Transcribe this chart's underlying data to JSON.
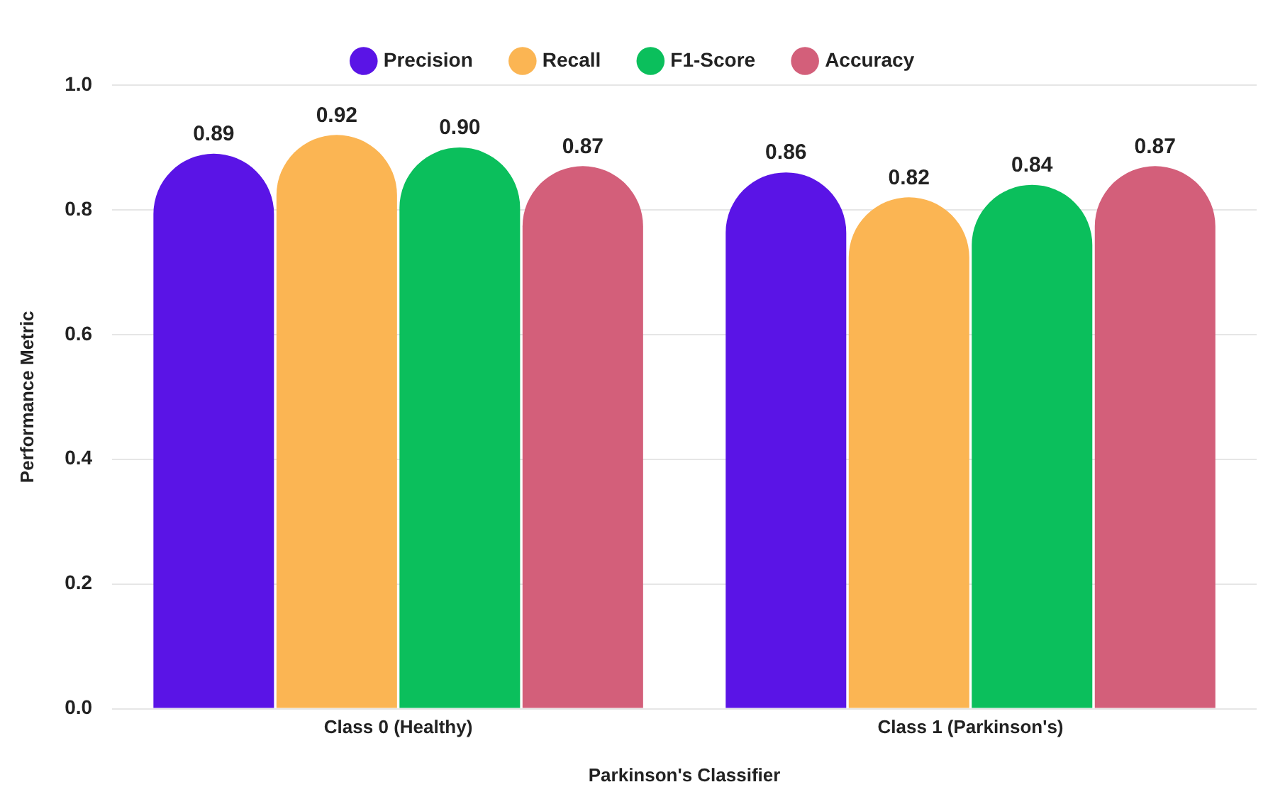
{
  "chart_data": {
    "type": "bar",
    "xlabel": "Parkinson's Classifier",
    "ylabel": "Performance Metric",
    "categories": [
      "Class 0 (Healthy)",
      "Class 1 (Parkinson's)"
    ],
    "series": [
      {
        "name": "Precision",
        "color": "#5a14e6",
        "values": [
          0.89,
          0.86
        ],
        "value_labels": [
          "0.89",
          "0.86"
        ]
      },
      {
        "name": "Recall",
        "color": "#fbb553",
        "values": [
          0.92,
          0.82
        ],
        "value_labels": [
          "0.92",
          "0.82"
        ]
      },
      {
        "name": "F1-Score",
        "color": "#0bbf5c",
        "values": [
          0.9,
          0.84
        ],
        "value_labels": [
          "0.90",
          "0.84"
        ]
      },
      {
        "name": "Accuracy",
        "color": "#d35f7a",
        "values": [
          0.87,
          0.87
        ],
        "value_labels": [
          "0.87",
          "0.87"
        ]
      }
    ],
    "ylim": [
      0,
      1.0
    ],
    "yticks": [
      {
        "value": 0,
        "label": "0.0"
      },
      {
        "value": 0.2,
        "label": "0.2"
      },
      {
        "value": 0.4,
        "label": "0.4"
      },
      {
        "value": 0.6,
        "label": "0.6"
      },
      {
        "value": 0.8,
        "label": "0.8"
      },
      {
        "value": 1.0,
        "label": "1.0"
      }
    ],
    "grid": "y",
    "legend": "top"
  }
}
